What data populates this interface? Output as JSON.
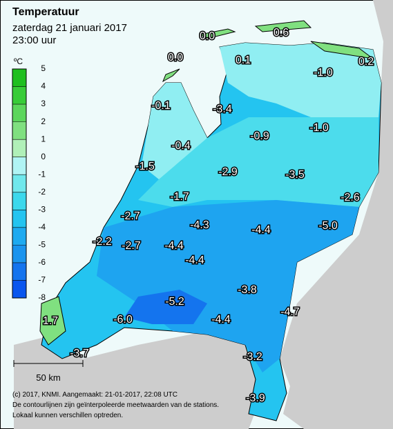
{
  "header": {
    "title": "Temperatuur",
    "date": "zaterdag 21 januari 2017",
    "time": "23:00 uur"
  },
  "legend": {
    "unit": "ºC",
    "ticks": [
      5,
      4,
      3,
      2,
      1,
      0,
      -1,
      -2,
      -3,
      -4,
      -5,
      -6,
      -7,
      -8
    ],
    "colors": [
      "#1fbf1f",
      "#38cc38",
      "#5cd65c",
      "#80e080",
      "#b0f0b8",
      "#b0f4f4",
      "#70e8ec",
      "#3cd8ec",
      "#24c4f0",
      "#1eaaf0",
      "#1a94ee",
      "#1474ee",
      "#0a56ee"
    ]
  },
  "stations": [
    "0.0",
    "0.6",
    "0.0",
    "0.1",
    "-1.0",
    "0.2",
    "-0.1",
    "-3.4",
    "-1.0",
    "-0.9",
    "-0.4",
    "-1.5",
    "-2.9",
    "-3.5",
    "-1.7",
    "-2.6",
    "-2.7",
    "-4.3",
    "-4.4",
    "-5.0",
    "-2.2",
    "-2.7",
    "-4.4",
    "-4.4",
    "-3.8",
    "-4.7",
    "-5.2",
    "-6.0",
    "-4.4",
    "1.7",
    "-3.7",
    "-3.2",
    "-3.9"
  ],
  "scale": "50 km",
  "footer": [
    "(c) 2017, KNMI. Aangemaakt: 21-01-2017, 22:08 UTC",
    "De contourlijnen zijn geïnterpoleerde meetwaarden van de stations.",
    "Lokaal kunnen verschillen optreden."
  ]
}
